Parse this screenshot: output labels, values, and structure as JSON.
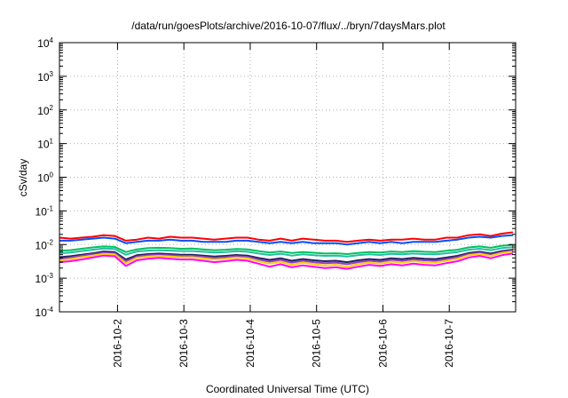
{
  "chart_data": {
    "type": "line",
    "title": "/data/run/goesPlots/archive/2016-10-07/flux/../bryn/7daysMars.plot",
    "xlabel": "Coordinated Universal Time (UTC)",
    "ylabel": "cSv/day",
    "yscale": "log",
    "ylim": [
      0.0001,
      10000
    ],
    "xlim": [
      "2016-10-01T03:00",
      "2016-10-08T00:00"
    ],
    "x_ticks": [
      "2016-10-2",
      "2016-10-3",
      "2016-10-4",
      "2016-10-5",
      "2016-10-6",
      "2016-10-7"
    ],
    "y_ticks": [
      {
        "value": 0.0001,
        "base": "10",
        "exp": "-4"
      },
      {
        "value": 0.001,
        "base": "10",
        "exp": "-3"
      },
      {
        "value": 0.01,
        "base": "10",
        "exp": "-2"
      },
      {
        "value": 0.1,
        "base": "10",
        "exp": "-1"
      },
      {
        "value": 1,
        "base": "10",
        "exp": "0"
      },
      {
        "value": 10,
        "base": "10",
        "exp": "1"
      },
      {
        "value": 100,
        "base": "10",
        "exp": "2"
      },
      {
        "value": 1000,
        "base": "10",
        "exp": "3"
      },
      {
        "value": 10000,
        "base": "10",
        "exp": "4"
      }
    ],
    "grid": true,
    "legend": "none",
    "x": [
      "2016-10-01T03:00",
      "2016-10-01T07:00",
      "2016-10-01T11:00",
      "2016-10-01T15:00",
      "2016-10-01T19:00",
      "2016-10-01T23:00",
      "2016-10-02T03:00",
      "2016-10-02T07:00",
      "2016-10-02T11:00",
      "2016-10-02T15:00",
      "2016-10-02T19:00",
      "2016-10-02T23:00",
      "2016-10-03T03:00",
      "2016-10-03T07:00",
      "2016-10-03T11:00",
      "2016-10-03T15:00",
      "2016-10-03T19:00",
      "2016-10-03T23:00",
      "2016-10-04T03:00",
      "2016-10-04T07:00",
      "2016-10-04T11:00",
      "2016-10-04T15:00",
      "2016-10-04T19:00",
      "2016-10-04T23:00",
      "2016-10-05T03:00",
      "2016-10-05T07:00",
      "2016-10-05T11:00",
      "2016-10-05T15:00",
      "2016-10-05T19:00",
      "2016-10-05T23:00",
      "2016-10-06T03:00",
      "2016-10-06T07:00",
      "2016-10-06T11:00",
      "2016-10-06T15:00",
      "2016-10-06T19:00",
      "2016-10-06T23:00",
      "2016-10-07T03:00",
      "2016-10-07T07:00",
      "2016-10-07T11:00",
      "2016-10-07T15:00",
      "2016-10-07T19:00",
      "2016-10-07T23:00"
    ],
    "series": [
      {
        "color": "#ff0000",
        "values": [
          0.016,
          0.015,
          0.016,
          0.017,
          0.019,
          0.018,
          0.013,
          0.014,
          0.016,
          0.015,
          0.017,
          0.016,
          0.016,
          0.015,
          0.014,
          0.015,
          0.016,
          0.016,
          0.014,
          0.013,
          0.015,
          0.013,
          0.015,
          0.014,
          0.013,
          0.013,
          0.012,
          0.013,
          0.014,
          0.013,
          0.014,
          0.014,
          0.015,
          0.014,
          0.014,
          0.016,
          0.016,
          0.019,
          0.02,
          0.018,
          0.021,
          0.023
        ]
      },
      {
        "color": "#0050ff",
        "values": [
          0.013,
          0.013,
          0.014,
          0.015,
          0.016,
          0.015,
          0.011,
          0.012,
          0.013,
          0.013,
          0.014,
          0.013,
          0.013,
          0.012,
          0.012,
          0.012,
          0.013,
          0.013,
          0.012,
          0.011,
          0.012,
          0.011,
          0.012,
          0.011,
          0.011,
          0.011,
          0.01,
          0.011,
          0.012,
          0.011,
          0.012,
          0.011,
          0.012,
          0.012,
          0.012,
          0.013,
          0.014,
          0.016,
          0.017,
          0.016,
          0.018,
          0.019
        ]
      },
      {
        "color": "#00c060",
        "values": [
          0.0065,
          0.0068,
          0.0075,
          0.0082,
          0.0088,
          0.0085,
          0.006,
          0.0072,
          0.0078,
          0.008,
          0.0078,
          0.0075,
          0.0076,
          0.0072,
          0.0068,
          0.007,
          0.0074,
          0.0072,
          0.0064,
          0.0058,
          0.0062,
          0.0056,
          0.006,
          0.0057,
          0.0054,
          0.0055,
          0.0052,
          0.0056,
          0.006,
          0.0058,
          0.0062,
          0.006,
          0.0064,
          0.0061,
          0.006,
          0.0065,
          0.007,
          0.0082,
          0.0088,
          0.008,
          0.0092,
          0.0098
        ]
      },
      {
        "color": "#20c0a0",
        "values": [
          0.0055,
          0.0058,
          0.0064,
          0.007,
          0.0076,
          0.0074,
          0.005,
          0.0062,
          0.0066,
          0.0068,
          0.0066,
          0.0064,
          0.0064,
          0.0061,
          0.0058,
          0.006,
          0.0063,
          0.0061,
          0.0054,
          0.0049,
          0.0053,
          0.0047,
          0.0051,
          0.0048,
          0.0046,
          0.0047,
          0.0044,
          0.0048,
          0.0051,
          0.0049,
          0.0053,
          0.0051,
          0.0054,
          0.0052,
          0.0051,
          0.0055,
          0.006,
          0.007,
          0.0075,
          0.0068,
          0.0078,
          0.0083
        ]
      },
      {
        "color": "#202060",
        "values": [
          0.0042,
          0.0045,
          0.005,
          0.0055,
          0.0062,
          0.006,
          0.0036,
          0.0048,
          0.0052,
          0.0054,
          0.0052,
          0.005,
          0.005,
          0.0047,
          0.0044,
          0.0046,
          0.0049,
          0.0047,
          0.004,
          0.0035,
          0.0039,
          0.0033,
          0.0037,
          0.0034,
          0.0032,
          0.0033,
          0.003,
          0.0034,
          0.0037,
          0.0035,
          0.0039,
          0.0037,
          0.004,
          0.0038,
          0.0037,
          0.0041,
          0.0046,
          0.0056,
          0.0061,
          0.0054,
          0.0064,
          0.007
        ]
      },
      {
        "color": "#9040c0",
        "values": [
          0.0038,
          0.0041,
          0.0046,
          0.0051,
          0.0057,
          0.0055,
          0.0032,
          0.0044,
          0.0048,
          0.005,
          0.0048,
          0.0046,
          0.0046,
          0.0043,
          0.004,
          0.0042,
          0.0045,
          0.0043,
          0.0036,
          0.0031,
          0.0035,
          0.0029,
          0.0033,
          0.003,
          0.0028,
          0.0029,
          0.0026,
          0.003,
          0.0033,
          0.0031,
          0.0035,
          0.0033,
          0.0036,
          0.0034,
          0.0033,
          0.0037,
          0.0042,
          0.0052,
          0.0057,
          0.005,
          0.006,
          0.0066
        ]
      },
      {
        "color": "#ffcc00",
        "values": [
          0.0034,
          0.0037,
          0.0042,
          0.0047,
          0.0053,
          0.0051,
          0.0028,
          0.004,
          0.0044,
          0.0046,
          0.0044,
          0.0042,
          0.0042,
          0.0039,
          0.0036,
          0.0038,
          0.0041,
          0.0039,
          0.0032,
          0.0027,
          0.0031,
          0.0025,
          0.0029,
          0.0026,
          0.0024,
          0.0025,
          0.0022,
          0.0026,
          0.0029,
          0.0027,
          0.0031,
          0.0029,
          0.0032,
          0.003,
          0.0029,
          0.0033,
          0.0038,
          0.0048,
          0.0053,
          0.0046,
          0.0056,
          0.0062
        ]
      },
      {
        "color": "#ff00ff",
        "values": [
          0.003,
          0.0032,
          0.0036,
          0.0041,
          0.0047,
          0.0045,
          0.0023,
          0.0034,
          0.0038,
          0.004,
          0.0038,
          0.0036,
          0.0036,
          0.0033,
          0.003,
          0.0032,
          0.0035,
          0.0033,
          0.0027,
          0.0022,
          0.0026,
          0.0021,
          0.0024,
          0.0022,
          0.002,
          0.0021,
          0.0019,
          0.0022,
          0.0025,
          0.0023,
          0.0026,
          0.0024,
          0.0027,
          0.0025,
          0.0024,
          0.0028,
          0.0032,
          0.0041,
          0.0046,
          0.0039,
          0.0048,
          0.0054
        ]
      }
    ]
  }
}
